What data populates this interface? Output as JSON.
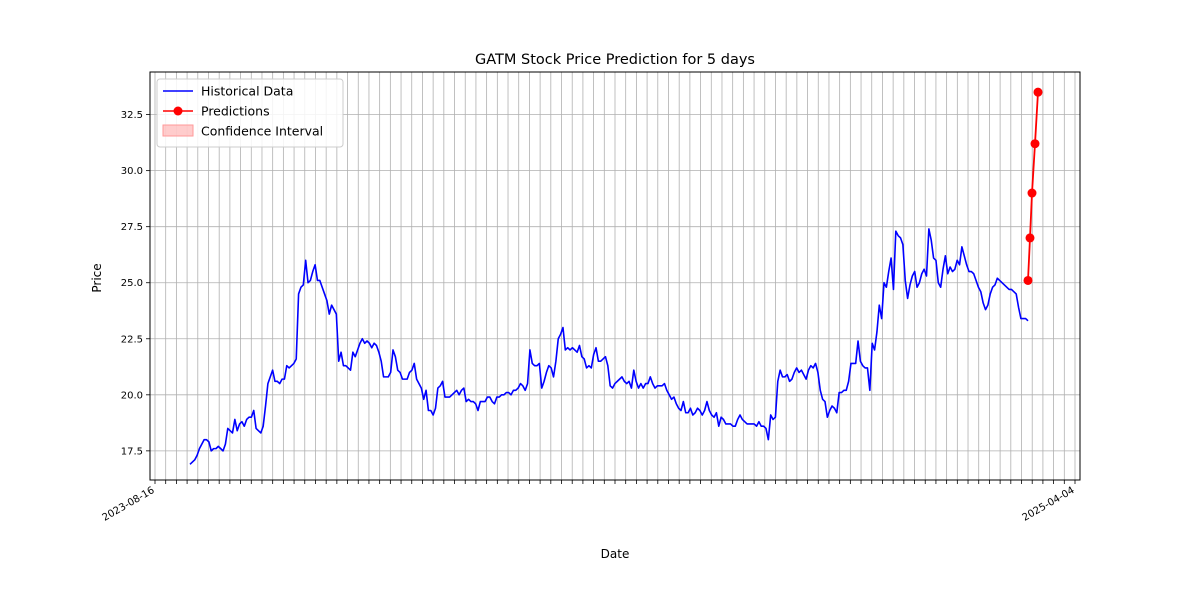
{
  "chart_data": {
    "type": "line",
    "title": "GATM Stock Price Prediction for 5 days",
    "xlabel": "Date",
    "ylabel": "Price",
    "ylim": [
      16.2,
      34.4
    ],
    "y_ticks": [
      17.5,
      20.0,
      22.5,
      25.0,
      27.5,
      30.0,
      32.5
    ],
    "y_tick_labels": [
      "17.5",
      "20.0",
      "22.5",
      "25.0",
      "27.5",
      "30.0",
      "32.5"
    ],
    "x_tick_labels_readable": [
      "2023-08-16",
      "2025-04-04"
    ],
    "grid": true,
    "legend_position": "top-left",
    "legend": [
      "Historical Data",
      "Predictions",
      "Confidence Interval"
    ],
    "colors": {
      "historical": "#0000ff",
      "predictions": "#ff0000",
      "confidence": "#ff9999",
      "grid": "#b0b0b0"
    },
    "series": [
      {
        "name": "Historical Data",
        "values": [
          16.9,
          17.0,
          17.1,
          17.3,
          17.6,
          17.8,
          18.0,
          18.0,
          17.9,
          17.5,
          17.6,
          17.6,
          17.7,
          17.6,
          17.5,
          17.8,
          18.5,
          18.4,
          18.3,
          18.9,
          18.4,
          18.7,
          18.8,
          18.6,
          18.9,
          19.0,
          19.0,
          19.3,
          18.5,
          18.4,
          18.3,
          18.6,
          19.5,
          20.5,
          20.8,
          21.1,
          20.6,
          20.6,
          20.5,
          20.7,
          20.7,
          21.3,
          21.2,
          21.3,
          21.4,
          21.6,
          24.5,
          24.8,
          24.9,
          26.0,
          25.0,
          25.1,
          25.5,
          25.8,
          25.1,
          25.1,
          24.8,
          24.5,
          24.2,
          23.6,
          24.0,
          23.8,
          23.6,
          21.5,
          21.9,
          21.3,
          21.3,
          21.2,
          21.1,
          21.9,
          21.7,
          22.0,
          22.3,
          22.5,
          22.3,
          22.4,
          22.3,
          22.1,
          22.3,
          22.2,
          21.9,
          21.5,
          20.8,
          20.8,
          20.8,
          21.0,
          22.0,
          21.7,
          21.1,
          21.0,
          20.7,
          20.7,
          20.7,
          21.0,
          21.1,
          21.4,
          20.7,
          20.5,
          20.3,
          19.8,
          20.2,
          19.3,
          19.3,
          19.1,
          19.4,
          20.3,
          20.4,
          20.6,
          19.9,
          19.9,
          19.9,
          20.0,
          20.1,
          20.2,
          20.0,
          20.2,
          20.3,
          19.7,
          19.8,
          19.7,
          19.7,
          19.6,
          19.3,
          19.7,
          19.7,
          19.7,
          19.9,
          19.9,
          19.7,
          19.6,
          19.9,
          19.9,
          20.0,
          20.0,
          20.1,
          20.1,
          20.0,
          20.2,
          20.2,
          20.3,
          20.5,
          20.4,
          20.2,
          20.5,
          22.0,
          21.4,
          21.3,
          21.3,
          21.4,
          20.3,
          20.6,
          21.0,
          21.3,
          21.2,
          20.8,
          21.5,
          22.5,
          22.7,
          23.0,
          22.0,
          22.1,
          22.0,
          22.1,
          22.0,
          21.9,
          22.2,
          21.7,
          21.6,
          21.2,
          21.3,
          21.2,
          21.8,
          22.1,
          21.5,
          21.5,
          21.6,
          21.7,
          21.3,
          20.4,
          20.3,
          20.5,
          20.6,
          20.7,
          20.8,
          20.6,
          20.5,
          20.6,
          20.3,
          21.1,
          20.6,
          20.3,
          20.5,
          20.3,
          20.5,
          20.5,
          20.8,
          20.5,
          20.3,
          20.4,
          20.4,
          20.4,
          20.5,
          20.2,
          20.0,
          19.8,
          19.9,
          19.6,
          19.4,
          19.3,
          19.7,
          19.2,
          19.2,
          19.4,
          19.1,
          19.2,
          19.4,
          19.3,
          19.1,
          19.3,
          19.7,
          19.3,
          19.1,
          19.0,
          19.2,
          18.6,
          19.0,
          18.9,
          18.7,
          18.7,
          18.7,
          18.6,
          18.6,
          18.9,
          19.1,
          18.9,
          18.8,
          18.7,
          18.7,
          18.7,
          18.7,
          18.6,
          18.8,
          18.6,
          18.6,
          18.5,
          18.0,
          19.1,
          18.9,
          19.0,
          20.6,
          21.1,
          20.8,
          20.8,
          20.9,
          20.6,
          20.7,
          21.0,
          21.2,
          21.0,
          21.1,
          20.9,
          20.7,
          21.1,
          21.3,
          21.2,
          21.4,
          21.0,
          20.2,
          19.8,
          19.7,
          19.0,
          19.3,
          19.5,
          19.4,
          19.2,
          20.1,
          20.1,
          20.2,
          20.2,
          20.6,
          21.4,
          21.4,
          21.4,
          22.4,
          21.5,
          21.3,
          21.2,
          21.2,
          20.2,
          22.3,
          22.0,
          22.8,
          24.0,
          23.4,
          25.0,
          24.8,
          25.5,
          26.1,
          24.7,
          27.3,
          27.1,
          27.0,
          26.7,
          25.1,
          24.3,
          24.9,
          25.3,
          25.5,
          24.8,
          25.0,
          25.4,
          25.6,
          25.3,
          27.4,
          26.9,
          26.1,
          26.0,
          25.0,
          24.8,
          25.6,
          26.2,
          25.4,
          25.7,
          25.5,
          25.6,
          26.0,
          25.8,
          26.6,
          26.2,
          25.8,
          25.5,
          25.5,
          25.4,
          25.1,
          24.8,
          24.6,
          24.1,
          23.8,
          24.0,
          24.5,
          24.8,
          24.9,
          25.2,
          25.1,
          25.0,
          24.9,
          24.8,
          24.7,
          24.7,
          24.6,
          24.5,
          23.9,
          23.4,
          23.4,
          23.4,
          23.3
        ]
      },
      {
        "name": "Predictions",
        "values": [
          25.1,
          27.0,
          29.0,
          31.2,
          33.5
        ]
      }
    ]
  }
}
